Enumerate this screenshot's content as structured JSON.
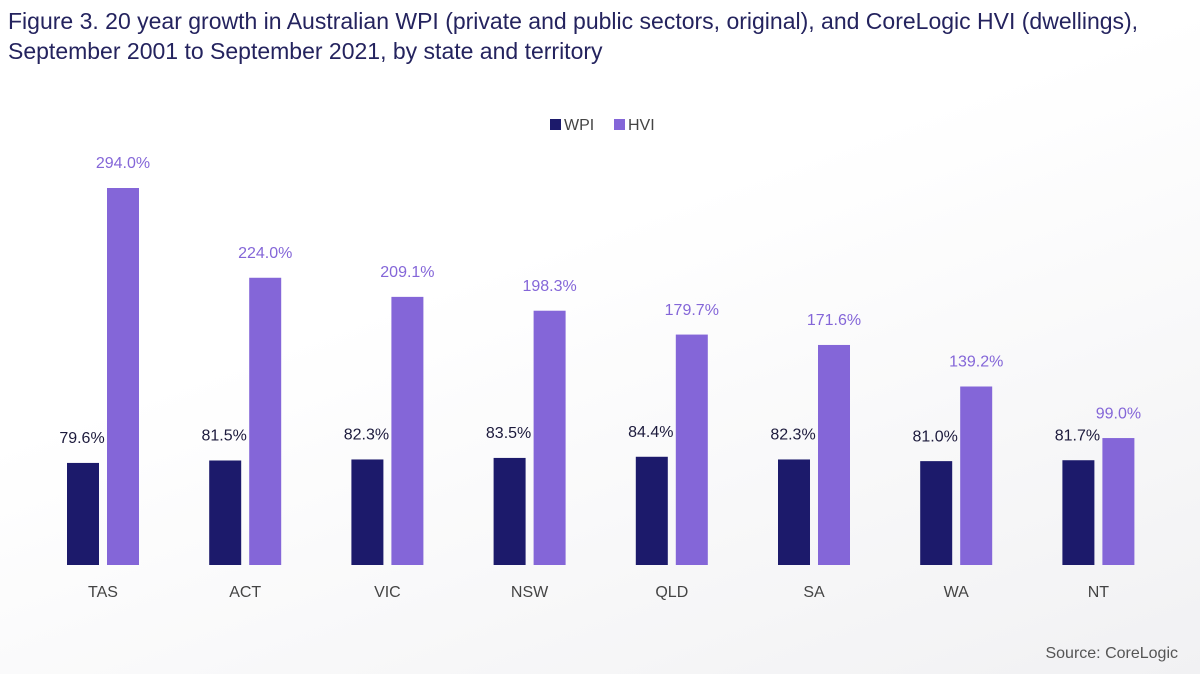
{
  "chart_data": {
    "type": "bar",
    "title": "Figure 3. 20 year growth in Australian WPI (private and public sectors, original), and CoreLogic HVI (dwellings), September 2001 to September 2021, by state and territory",
    "source": "Source: CoreLogic",
    "categories": [
      "TAS",
      "ACT",
      "VIC",
      "NSW",
      "QLD",
      "SA",
      "WA",
      "NT"
    ],
    "series": [
      {
        "name": "WPI",
        "color": "#1c1a6b",
        "values": [
          79.6,
          81.5,
          82.3,
          83.5,
          84.4,
          82.3,
          81.0,
          81.7
        ],
        "value_labels": [
          "79.6%",
          "81.5%",
          "82.3%",
          "83.5%",
          "84.4%",
          "82.3%",
          "81.0%",
          "81.7%"
        ]
      },
      {
        "name": "HVI",
        "color": "#8466d8",
        "values": [
          294.0,
          224.0,
          209.1,
          198.3,
          179.7,
          171.6,
          139.2,
          99.0
        ],
        "value_labels": [
          "294.0%",
          "224.0%",
          "209.1%",
          "198.3%",
          "179.7%",
          "171.6%",
          "139.2%",
          "99.0%"
        ]
      }
    ],
    "legend": "top"
  }
}
